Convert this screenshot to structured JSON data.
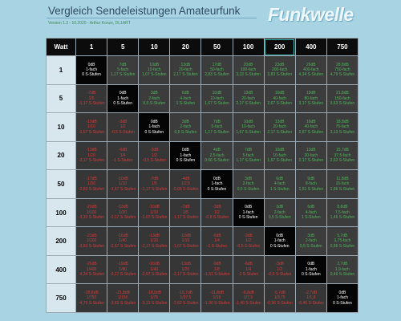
{
  "header": {
    "title": "Vergleich Sendeleistungen Amateurfunk",
    "subtitle": "Version 1.3 - 10.2020 - Arthur Konze, DL1ART",
    "logo": "Funkwelle"
  },
  "table": {
    "columns": [
      "Watt",
      "1",
      "5",
      "10",
      "20",
      "50",
      "100",
      "200",
      "400",
      "750"
    ],
    "rows": [
      {
        "label": "1",
        "cells": [
          [
            "0dB",
            "1-fach",
            "0 S-Stufen"
          ],
          [
            "7dB",
            "5-fach",
            "1,17 S-Stufen"
          ],
          [
            "10dB",
            "10-fach",
            "1,67 S-Stufen"
          ],
          [
            "13dB",
            "20-fach",
            "2,17 S-Stufen"
          ],
          [
            "17dB",
            "50-fach",
            "2,83 S-Stufen"
          ],
          [
            "20dB",
            "100-fach",
            "3,33 S-Stufen"
          ],
          [
            "23dB",
            "200-fach",
            "3,83 S-Stufen"
          ],
          [
            "26dB",
            "400-fach",
            "4,34 S-Stufen"
          ],
          [
            "28,8dB",
            "750-fach",
            "4,79 S-Stufen"
          ]
        ]
      },
      {
        "label": "5",
        "cells": [
          [
            "-7dB",
            "1/5",
            "-1,17 S-Stufen"
          ],
          [
            "0dB",
            "1-fach",
            "0 S-Stufen"
          ],
          [
            "3dB",
            "2-fach",
            "0,5 S-Stufen"
          ],
          [
            "6dB",
            "4-fach",
            "1 S-Stufen"
          ],
          [
            "10dB",
            "10-fach",
            "1,67 S-Stufen"
          ],
          [
            "13dB",
            "20-fach",
            "2,17 S-Stufen"
          ],
          [
            "16dB",
            "40-fach",
            "2,67 S-Stufen"
          ],
          [
            "19dB",
            "80-fach",
            "3,17 S-Stufen"
          ],
          [
            "21,8dB",
            "150-fach",
            "3,63 S-Stufen"
          ]
        ]
      },
      {
        "label": "10",
        "cells": [
          [
            "-10dB",
            "1/10",
            "-1,67 S-Stufen"
          ],
          [
            "-3dB",
            "1/2",
            "-0,5 S-Stufen"
          ],
          [
            "0dB",
            "1-fach",
            "0 S-Stufen"
          ],
          [
            "3dB",
            "2-fach",
            "0,5 S-Stufen"
          ],
          [
            "7dB",
            "5-fach",
            "1,17 S-Stufen"
          ],
          [
            "10dB",
            "10-fach",
            "1,67 S-Stufen"
          ],
          [
            "13dB",
            "20-fach",
            "2,17 S-Stufen"
          ],
          [
            "16dB",
            "40-fach",
            "2,67 S-Stufen"
          ],
          [
            "18,8dB",
            "75-fach",
            "3,13 S-Stufen"
          ]
        ]
      },
      {
        "label": "20",
        "cells": [
          [
            "-13dB",
            "1/20",
            "-2,17 S-Stufen"
          ],
          [
            "-6dB",
            "1/4",
            "-1 S-Stufen"
          ],
          [
            "-3dB",
            "1/2",
            "-0,5 S-Stufen"
          ],
          [
            "0dB",
            "1-fach",
            "0 S-Stufen"
          ],
          [
            "4dB",
            "2,5-fach",
            "0,66 S-Stufen"
          ],
          [
            "7dB",
            "5-fach",
            "1,17 S-Stufen"
          ],
          [
            "10dB",
            "10-fach",
            "1,67 S-Stufen"
          ],
          [
            "13dB",
            "20-fach",
            "2,17 S-Stufen"
          ],
          [
            "15,7dB",
            "37,5-fach",
            "2,62 S-Stufen"
          ]
        ]
      },
      {
        "label": "50",
        "cells": [
          [
            "-17dB",
            "1/50",
            "-2,83 S-Stufen"
          ],
          [
            "-10dB",
            "1/10",
            "-1,67 S-Stufen"
          ],
          [
            "-7dB",
            "1/5",
            "-1,17 S-Stufen"
          ],
          [
            "-4dB",
            "1/2,5",
            "-0,66 S-Stufen"
          ],
          [
            "0dB",
            "1-fach",
            "0 S-Stufen"
          ],
          [
            "3dB",
            "2-fach",
            "0,5 S-Stufen"
          ],
          [
            "6dB",
            "4-fach",
            "1 S-Stufen"
          ],
          [
            "9dB",
            "8-fach",
            "1,51 S-Stufen"
          ],
          [
            "11,8dB",
            "15-fach",
            "1,96 S-Stufen"
          ]
        ]
      },
      {
        "label": "100",
        "cells": [
          [
            "-20dB",
            "1/100",
            "-3,33 S-Stufen"
          ],
          [
            "-13dB",
            "1/20",
            "-2,17 S-Stufen"
          ],
          [
            "-10dB",
            "1/10",
            "-1,67 S-Stufen"
          ],
          [
            "-7dB",
            "1/5",
            "-1,17 S-Stufen"
          ],
          [
            "-3dB",
            "1/2",
            "-0,5 S-Stufen"
          ],
          [
            "0dB",
            "1-fach",
            "0 S-Stufen"
          ],
          [
            "3dB",
            "2-fach",
            "0,5 S-Stufen"
          ],
          [
            "6dB",
            "4-fach",
            "1 S-Stufen"
          ],
          [
            "8,8dB",
            "7,5-fach",
            "1,46 S-Stufen"
          ]
        ]
      },
      {
        "label": "200",
        "cells": [
          [
            "-23dB",
            "1/200",
            "-3,83 S-Stufen"
          ],
          [
            "-16dB",
            "1/40",
            "-2,67 S-Stufen"
          ],
          [
            "-13dB",
            "1/20",
            "-2,17 S-Stufen"
          ],
          [
            "-10dB",
            "1/10",
            "-1,67 S-Stufen"
          ],
          [
            "-6dB",
            "1/4",
            "-1 S-Stufen"
          ],
          [
            "-3dB",
            "1/2",
            "-0,5 S-Stufen"
          ],
          [
            "0dB",
            "1-fach",
            "0 S-Stufen"
          ],
          [
            "3dB",
            "2-fach",
            "0,5 S-Stufen"
          ],
          [
            "5,7dB",
            "3,75-fach",
            "0,96 S-Stufen"
          ]
        ]
      },
      {
        "label": "400",
        "cells": [
          [
            "-26dB",
            "1/400",
            "-4,34 S-Stufen"
          ],
          [
            "-19dB",
            "1/80",
            "-3,17 S-Stufen"
          ],
          [
            "-16dB",
            "1/40",
            "-2,67 S-Stufen"
          ],
          [
            "-13dB",
            "1/20",
            "-2,17 S-Stufen"
          ],
          [
            "-9dB",
            "1/8",
            "-1,51 S-Stufen"
          ],
          [
            "-6dB",
            "1/4",
            "-1 S-Stufen"
          ],
          [
            "-3dB",
            "1/2",
            "-0,5 S-Stufen"
          ],
          [
            "0dB",
            "1-fach",
            "0 S-Stufen"
          ],
          [
            "2,7dB",
            "1,9-fach",
            "0,46 S-Stufen"
          ]
        ]
      },
      {
        "label": "750",
        "cells": [
          [
            "-28,8dB",
            "1/750",
            "-4,79 S-Stufen"
          ],
          [
            "-21,8dB",
            "1/150",
            "-3,63 S-Stufen"
          ],
          [
            "-18,8dB",
            "1/75",
            "-3,13 S-Stufen"
          ],
          [
            "-15,7dB",
            "1/37,5",
            "-2,62 S-Stufen"
          ],
          [
            "-11,8dB",
            "1/15",
            "-1,96 S-Stufen"
          ],
          [
            "-8,8dB",
            "1/7,5",
            "-1,46 S-Stufen"
          ],
          [
            "-5,7dB",
            "1/3,75",
            "-0,96 S-Stufen"
          ],
          [
            "-2,7dB",
            "1/1,9",
            "-0,46 S-Stufen"
          ],
          [
            "0dB",
            "1-fach",
            "0 S-Stufen"
          ]
        ]
      }
    ]
  }
}
